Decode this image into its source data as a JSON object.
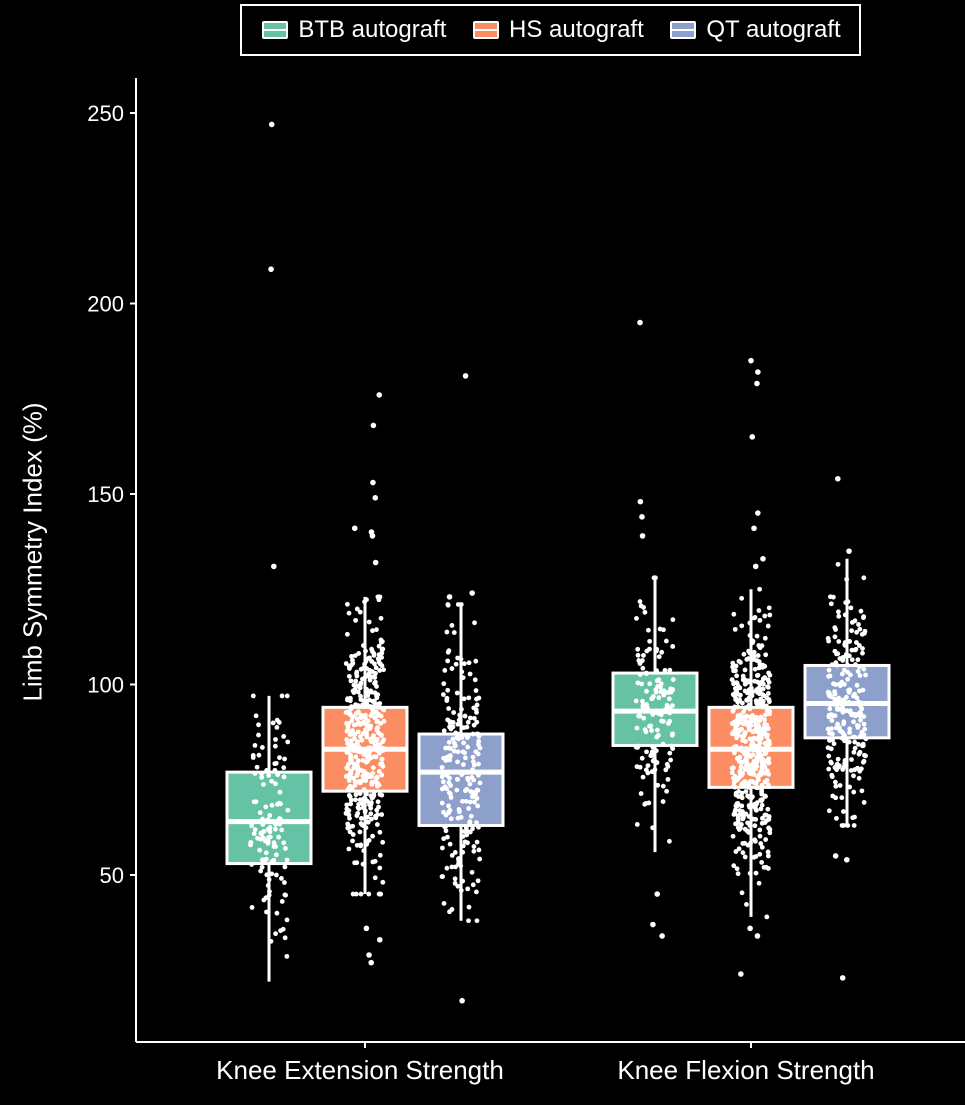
{
  "legend": {
    "items": [
      {
        "label": "BTB autograft",
        "color": "#66c2a5"
      },
      {
        "label": "HS autograft",
        "color": "#fc8d62"
      },
      {
        "label": "QT autograft",
        "color": "#8da0cb"
      }
    ]
  },
  "chart_data": {
    "type": "boxplot",
    "title": "",
    "xlabel": "",
    "ylabel": "Limb Symmetry Index (%)",
    "ylim": [
      10,
      260
    ],
    "yticks": [
      50,
      100,
      150,
      200,
      250
    ],
    "categories": [
      "Knee Extension Strength",
      "Knee Flexion Strength"
    ],
    "grid": false,
    "legend_position": "top",
    "series": [
      {
        "name": "BTB autograft",
        "color": "#66c2a5",
        "boxes": [
          {
            "category": "Knee Extension Strength",
            "min": 22,
            "q1": 53,
            "median": 64,
            "q3": 77,
            "max": 97,
            "outliers": [
              247,
              209,
              131
            ]
          },
          {
            "category": "Knee Flexion Strength",
            "min": 56,
            "q1": 84,
            "median": 93,
            "q3": 103,
            "max": 128,
            "outliers": [
              195,
              148,
              144,
              139,
              45,
              37,
              34
            ]
          }
        ]
      },
      {
        "name": "HS autograft",
        "color": "#fc8d62",
        "boxes": [
          {
            "category": "Knee Extension Strength",
            "min": 45,
            "q1": 72,
            "median": 83,
            "q3": 94,
            "max": 123,
            "outliers": [
              176,
              168,
              153,
              149,
              141,
              140,
              139,
              132,
              36,
              33,
              29,
              27
            ]
          },
          {
            "category": "Knee Flexion Strength",
            "min": 39,
            "q1": 73,
            "median": 83,
            "q3": 94,
            "max": 125,
            "outliers": [
              185,
              182,
              179,
              165,
              145,
              141,
              133,
              131,
              36,
              34,
              24
            ]
          }
        ]
      },
      {
        "name": "QT autograft",
        "color": "#8da0cb",
        "boxes": [
          {
            "category": "Knee Extension Strength",
            "min": 38,
            "q1": 63,
            "median": 77,
            "q3": 87,
            "max": 121,
            "outliers": [
              181,
              124,
              123,
              17
            ]
          },
          {
            "category": "Knee Flexion Strength",
            "min": 63,
            "q1": 86,
            "median": 95,
            "q3": 105,
            "max": 133,
            "outliers": [
              154,
              135,
              55,
              54,
              23
            ]
          }
        ]
      }
    ]
  }
}
